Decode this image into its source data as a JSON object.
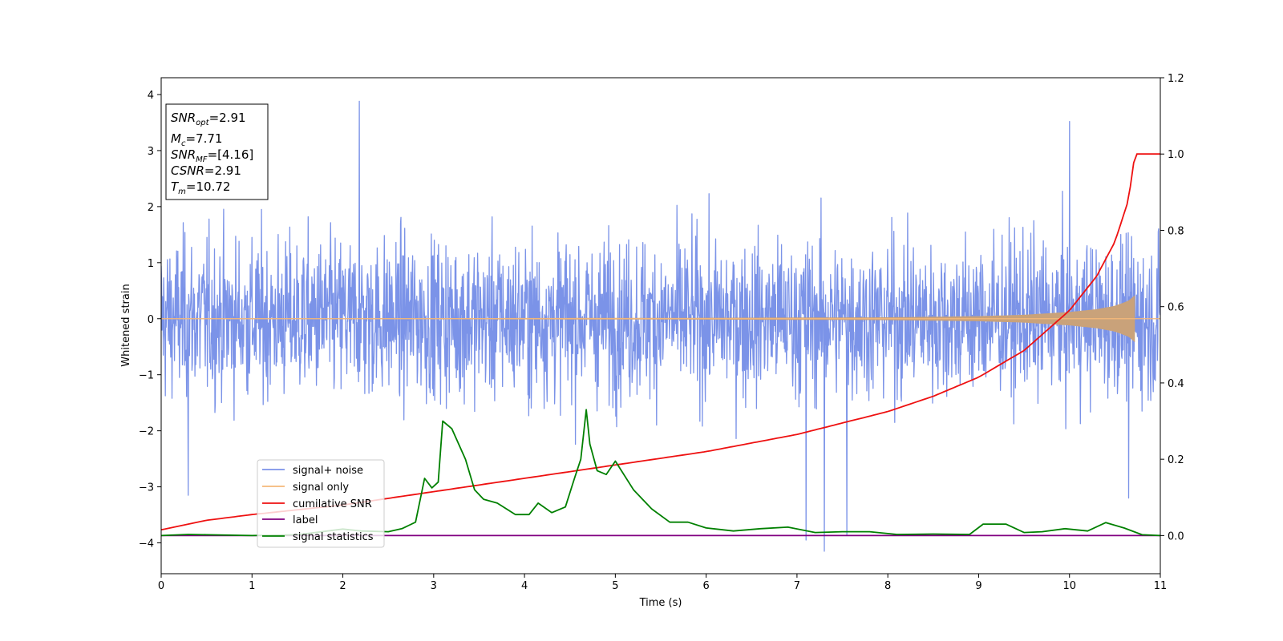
{
  "chart_data": {
    "type": "line",
    "xlabel": "Time (s)",
    "ylabel": "Whitened strain",
    "xlim": [
      0,
      11
    ],
    "ylim": [
      -4.55,
      4.3
    ],
    "y2lim": [
      -0.1,
      1.2
    ],
    "xticks": [
      "0",
      "1",
      "2",
      "3",
      "4",
      "5",
      "6",
      "7",
      "8",
      "9",
      "10",
      "11"
    ],
    "yticks": [
      "4",
      "3",
      "2",
      "1",
      "0",
      "−1",
      "−2",
      "−3",
      "−4"
    ],
    "y2ticks": [
      "1.2",
      "1.0",
      "0.8",
      "0.6",
      "0.4",
      "0.2",
      "0.0"
    ],
    "grid": false,
    "legend_position": "lower-left",
    "series": [
      {
        "name": "signal+ noise",
        "color": "#7b93e8",
        "axis": "left",
        "kind": "noise",
        "values_description_range": [
          -4.15,
          3.88
        ],
        "notable_points": [
          [
            2.18,
            3.88
          ],
          [
            10.0,
            3.52
          ],
          [
            7.3,
            -4.15
          ],
          [
            7.1,
            -3.95
          ],
          [
            7.55,
            -3.85
          ],
          [
            10.65,
            -3.2
          ],
          [
            0.3,
            -3.15
          ]
        ]
      },
      {
        "name": "signal only",
        "color": "#f5b87a",
        "axis": "left",
        "kind": "chirp",
        "x": [
          0,
          2,
          4,
          6,
          8,
          9,
          9.5,
          10,
          10.3,
          10.5,
          10.65,
          10.72
        ],
        "amplitude": [
          0.005,
          0.008,
          0.012,
          0.016,
          0.025,
          0.045,
          0.07,
          0.12,
          0.17,
          0.23,
          0.32,
          0.42
        ]
      },
      {
        "name": "cumilative SNR",
        "color": "#ee1111",
        "axis": "right",
        "x": [
          0,
          0.5,
          1,
          2,
          3,
          4,
          5,
          6,
          7,
          8,
          8.5,
          9,
          9.5,
          10,
          10.3,
          10.5,
          10.65,
          10.72,
          11
        ],
        "values": [
          0.015,
          0.04,
          0.055,
          0.08,
          0.115,
          0.15,
          0.185,
          0.22,
          0.265,
          0.325,
          0.365,
          0.415,
          0.485,
          0.59,
          0.68,
          0.77,
          0.88,
          1.0,
          1.0
        ]
      },
      {
        "name": "label",
        "color": "#800080",
        "axis": "right",
        "x": [
          0,
          11
        ],
        "values": [
          0.0,
          0.0
        ]
      },
      {
        "name": "signal statistics",
        "color": "#008000",
        "axis": "right",
        "x": [
          0,
          0.3,
          0.5,
          1.0,
          1.5,
          2.0,
          2.2,
          2.5,
          2.65,
          2.8,
          2.9,
          2.98,
          3.05,
          3.1,
          3.2,
          3.35,
          3.45,
          3.55,
          3.7,
          3.9,
          4.05,
          4.15,
          4.3,
          4.45,
          4.55,
          4.62,
          4.68,
          4.72,
          4.8,
          4.9,
          5.0,
          5.2,
          5.4,
          5.6,
          5.8,
          6.0,
          6.3,
          6.6,
          6.9,
          7.2,
          7.5,
          7.8,
          8.1,
          8.5,
          8.9,
          9.05,
          9.3,
          9.5,
          9.7,
          9.95,
          10.2,
          10.4,
          10.6,
          10.8,
          11.0
        ],
        "values": [
          0.0,
          0.003,
          0.002,
          0.0,
          0.002,
          0.017,
          0.012,
          0.01,
          0.018,
          0.035,
          0.15,
          0.125,
          0.14,
          0.3,
          0.28,
          0.2,
          0.12,
          0.095,
          0.085,
          0.055,
          0.055,
          0.085,
          0.06,
          0.075,
          0.15,
          0.2,
          0.33,
          0.24,
          0.17,
          0.16,
          0.195,
          0.12,
          0.07,
          0.035,
          0.035,
          0.02,
          0.012,
          0.018,
          0.022,
          0.008,
          0.01,
          0.01,
          0.003,
          0.004,
          0.003,
          0.03,
          0.03,
          0.008,
          0.01,
          0.018,
          0.012,
          0.034,
          0.02,
          0.002,
          0.0
        ]
      }
    ],
    "info_box": [
      {
        "base": "SNR",
        "sub": "opt",
        "value": "=2.91"
      },
      {
        "base": "M",
        "sub": "c",
        "value": "=7.71"
      },
      {
        "base": "SNR",
        "sub": "MF",
        "value": "=[4.16]"
      },
      {
        "base": "CSNR",
        "sub": "",
        "value": "=2.91"
      },
      {
        "base": "T",
        "sub": "m",
        "value": "=10.72"
      }
    ]
  }
}
